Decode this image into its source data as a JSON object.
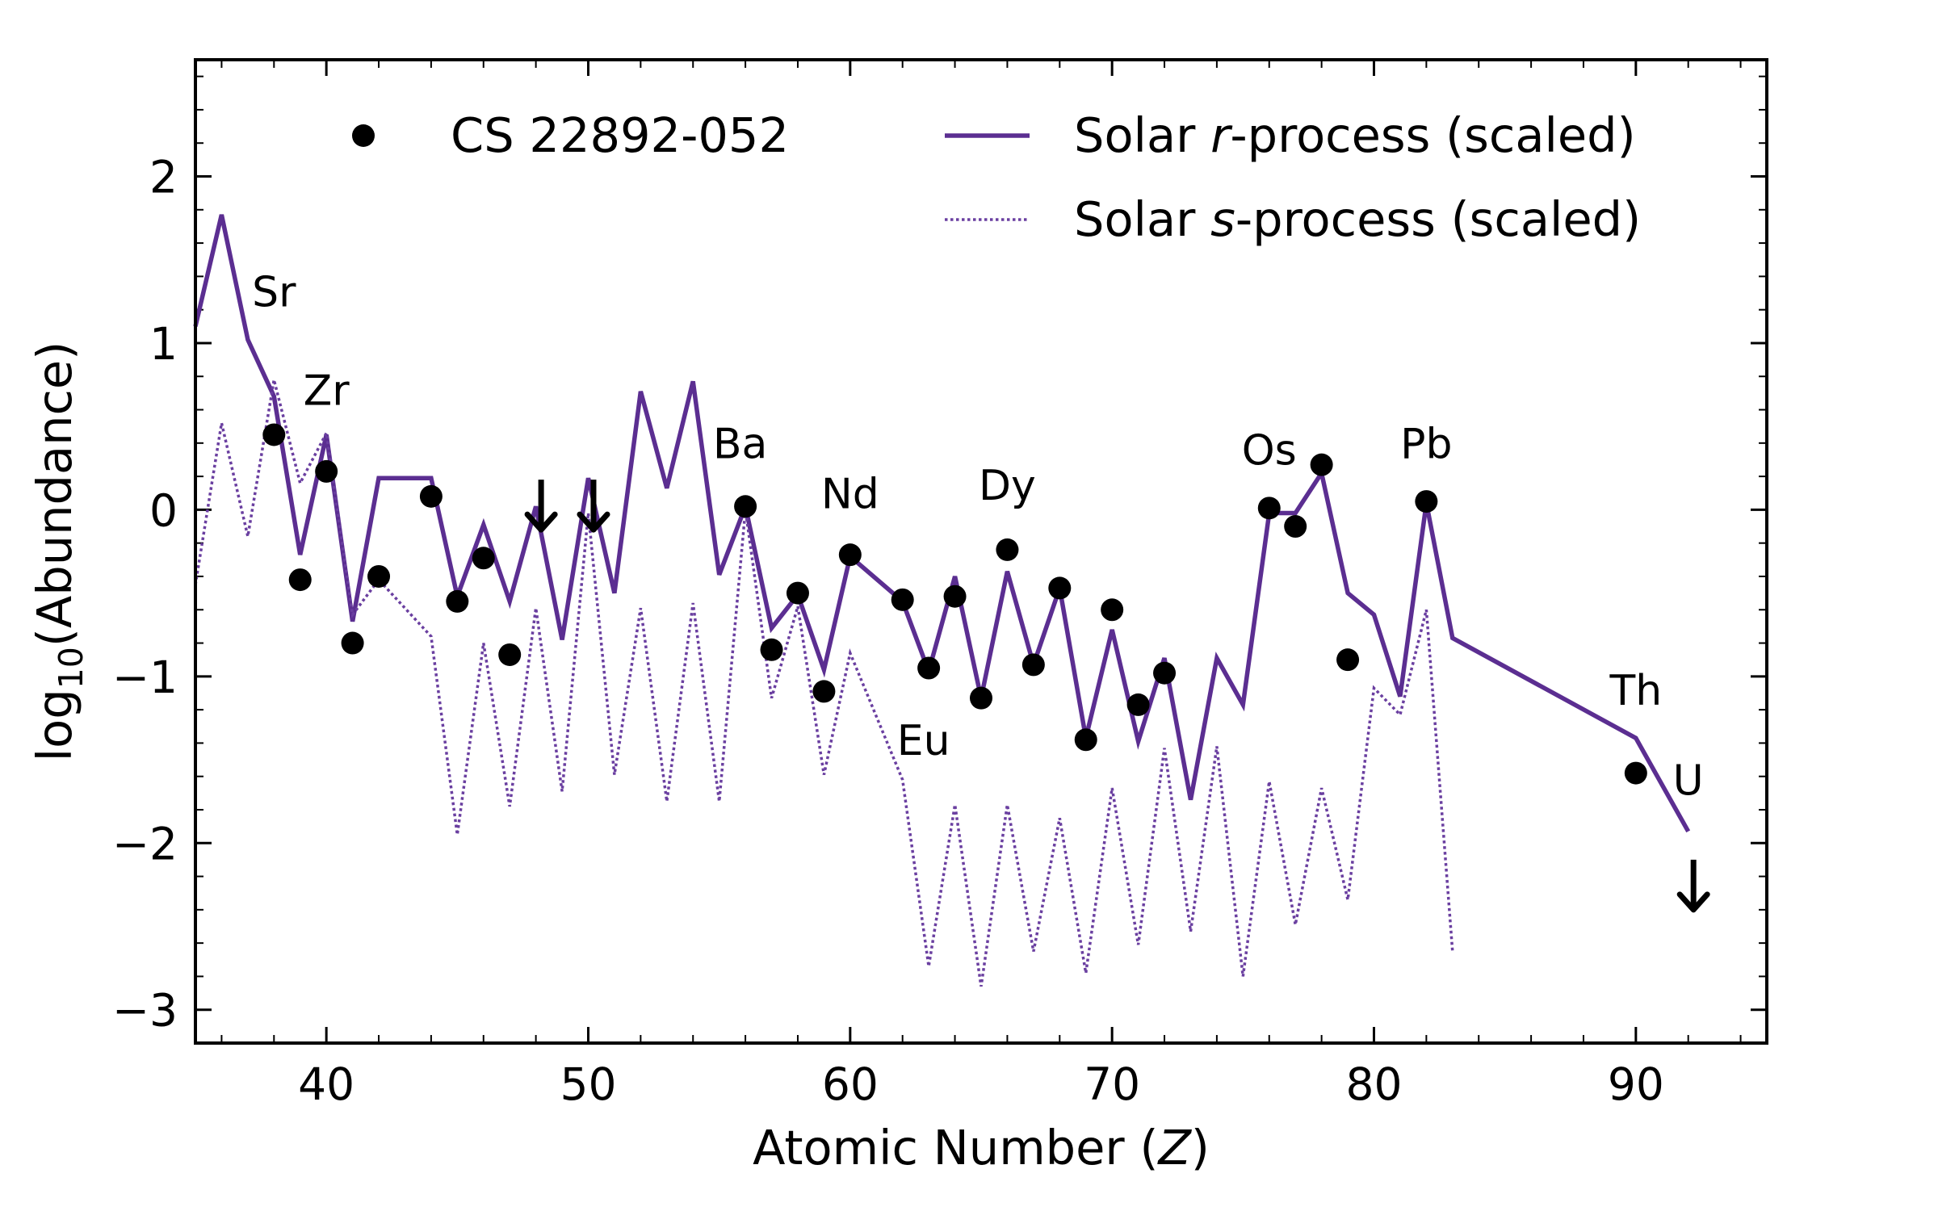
{
  "chart_data": {
    "type": "line",
    "xlabel": "Atomic Number (Z)",
    "xlabel_parts": {
      "prefix": "Atomic Number (",
      "var": "Z",
      "suffix": ")"
    },
    "ylabel": "log10(Abundance)",
    "ylabel_parts": {
      "prefix": "log",
      "sub": "10",
      "suffix": "(Abundance)"
    },
    "xlim": [
      35,
      95
    ],
    "ylim": [
      -3.2,
      2.7
    ],
    "grid": false,
    "legend_placement": "top",
    "x_ticks": [
      {
        "value": 40,
        "label": "40"
      },
      {
        "value": 50,
        "label": "50"
      },
      {
        "value": 60,
        "label": "60"
      },
      {
        "value": 70,
        "label": "70"
      },
      {
        "value": 80,
        "label": "80"
      },
      {
        "value": 90,
        "label": "90"
      }
    ],
    "y_ticks": [
      {
        "value": -3,
        "label": "−3"
      },
      {
        "value": -2,
        "label": "−2"
      },
      {
        "value": -1,
        "label": "−1"
      },
      {
        "value": 0,
        "label": "0"
      },
      {
        "value": 1,
        "label": "1"
      },
      {
        "value": 2,
        "label": "2"
      }
    ],
    "legend": [
      {
        "key": "obs",
        "marker": "dot",
        "name": "CS 22892-052",
        "prefix": "CS 22892-052",
        "italic": "",
        "suffix": ""
      },
      {
        "key": "rproc",
        "marker": "solid-line",
        "name": "Solar r-process (scaled)",
        "prefix": "Solar ",
        "italic": "r",
        "suffix": "-process (scaled)"
      },
      {
        "key": "sproc",
        "marker": "dotted-line",
        "name": "Solar s-process (scaled)",
        "prefix": "Solar ",
        "italic": "s",
        "suffix": "-process (scaled)"
      }
    ],
    "series": [
      {
        "key": "rproc",
        "name": "Solar r-process (scaled)",
        "style": "solid",
        "color": "#5b2e91",
        "x": [
          35,
          36,
          37,
          38,
          39,
          40,
          41,
          42,
          44,
          45,
          46,
          47,
          48,
          49,
          50,
          51,
          52,
          53,
          54,
          55,
          56,
          57,
          58,
          59,
          60,
          62,
          63,
          64,
          65,
          66,
          67,
          68,
          69,
          70,
          71,
          72,
          73,
          74,
          75,
          76,
          77,
          78,
          79,
          80,
          81,
          82,
          83,
          90,
          92
        ],
        "y": [
          1.1,
          1.77,
          1.02,
          0.68,
          -0.27,
          0.45,
          -0.67,
          0.19,
          0.19,
          -0.52,
          -0.09,
          -0.55,
          0.02,
          -0.78,
          0.19,
          -0.5,
          0.71,
          0.13,
          0.77,
          -0.39,
          0.02,
          -0.71,
          -0.51,
          -0.96,
          -0.28,
          -0.55,
          -0.97,
          -0.4,
          -1.13,
          -0.37,
          -0.93,
          -0.47,
          -1.37,
          -0.72,
          -1.39,
          -0.89,
          -1.74,
          -0.89,
          -1.17,
          -0.02,
          -0.02,
          0.22,
          -0.5,
          -0.63,
          -1.12,
          0.04,
          -0.77,
          -1.37,
          -1.93
        ]
      },
      {
        "key": "sproc",
        "name": "Solar s-process (scaled)",
        "style": "dotted",
        "color": "#6a3fa0",
        "x": [
          35,
          36,
          37,
          38,
          39,
          40,
          41,
          42,
          44,
          45,
          46,
          47,
          48,
          49,
          50,
          51,
          52,
          53,
          54,
          55,
          56,
          57,
          58,
          59,
          60,
          62,
          63,
          64,
          65,
          66,
          67,
          68,
          69,
          70,
          71,
          72,
          73,
          74,
          75,
          76,
          77,
          78,
          79,
          80,
          81,
          82,
          83
        ],
        "y": [
          -0.45,
          0.52,
          -0.16,
          0.78,
          0.16,
          0.46,
          -0.63,
          -0.42,
          -0.76,
          -1.95,
          -0.8,
          -1.78,
          -0.59,
          -1.69,
          -0.02,
          -1.59,
          -0.59,
          -1.75,
          -0.56,
          -1.75,
          0.0,
          -1.13,
          -0.58,
          -1.59,
          -0.86,
          -1.62,
          -2.74,
          -1.77,
          -2.86,
          -1.77,
          -2.65,
          -1.85,
          -2.78,
          -1.67,
          -2.61,
          -1.43,
          -2.53,
          -1.42,
          -2.8,
          -1.63,
          -2.49,
          -1.67,
          -2.34,
          -1.07,
          -1.23,
          -0.6,
          -2.65
        ]
      }
    ],
    "observations": {
      "name": "CS 22892-052",
      "color": "#000000",
      "points": [
        {
          "x": 38,
          "y": 0.45
        },
        {
          "x": 39,
          "y": -0.42
        },
        {
          "x": 40,
          "y": 0.23
        },
        {
          "x": 41,
          "y": -0.8
        },
        {
          "x": 42,
          "y": -0.4
        },
        {
          "x": 44,
          "y": 0.08
        },
        {
          "x": 45,
          "y": -0.55
        },
        {
          "x": 46,
          "y": -0.29
        },
        {
          "x": 47,
          "y": -0.87
        },
        {
          "x": 56,
          "y": 0.02
        },
        {
          "x": 57,
          "y": -0.84
        },
        {
          "x": 58,
          "y": -0.5
        },
        {
          "x": 59,
          "y": -1.09
        },
        {
          "x": 60,
          "y": -0.27
        },
        {
          "x": 62,
          "y": -0.54
        },
        {
          "x": 63,
          "y": -0.95
        },
        {
          "x": 64,
          "y": -0.52
        },
        {
          "x": 65,
          "y": -1.13
        },
        {
          "x": 66,
          "y": -0.24
        },
        {
          "x": 67,
          "y": -0.93
        },
        {
          "x": 68,
          "y": -0.47
        },
        {
          "x": 69,
          "y": -1.38
        },
        {
          "x": 70,
          "y": -0.6
        },
        {
          "x": 71,
          "y": -1.17
        },
        {
          "x": 72,
          "y": -0.98
        },
        {
          "x": 76,
          "y": 0.01
        },
        {
          "x": 77,
          "y": -0.1
        },
        {
          "x": 78,
          "y": 0.27
        },
        {
          "x": 79,
          "y": -0.9
        },
        {
          "x": 82,
          "y": 0.05
        },
        {
          "x": 90,
          "y": -1.58
        }
      ],
      "upper_limits": [
        {
          "x": 48.2,
          "y": -0.12
        },
        {
          "x": 50.2,
          "y": -0.12
        },
        {
          "x": 92.2,
          "y": -2.4
        }
      ]
    },
    "annotations": [
      {
        "text": "Sr",
        "x": 38.0,
        "y": 1.22
      },
      {
        "text": "Zr",
        "x": 40.0,
        "y": 0.63
      },
      {
        "text": "Ba",
        "x": 55.8,
        "y": 0.31
      },
      {
        "text": "Nd",
        "x": 60.0,
        "y": 0.01
      },
      {
        "text": "Dy",
        "x": 66.0,
        "y": 0.06
      },
      {
        "text": "Eu",
        "x": 62.8,
        "y": -1.47
      },
      {
        "text": "Os",
        "x": 76.0,
        "y": 0.27
      },
      {
        "text": "Pb",
        "x": 82.0,
        "y": 0.31
      },
      {
        "text": "Th",
        "x": 90.0,
        "y": -1.17
      },
      {
        "text": "U",
        "x": 92.0,
        "y": -1.71
      }
    ]
  }
}
